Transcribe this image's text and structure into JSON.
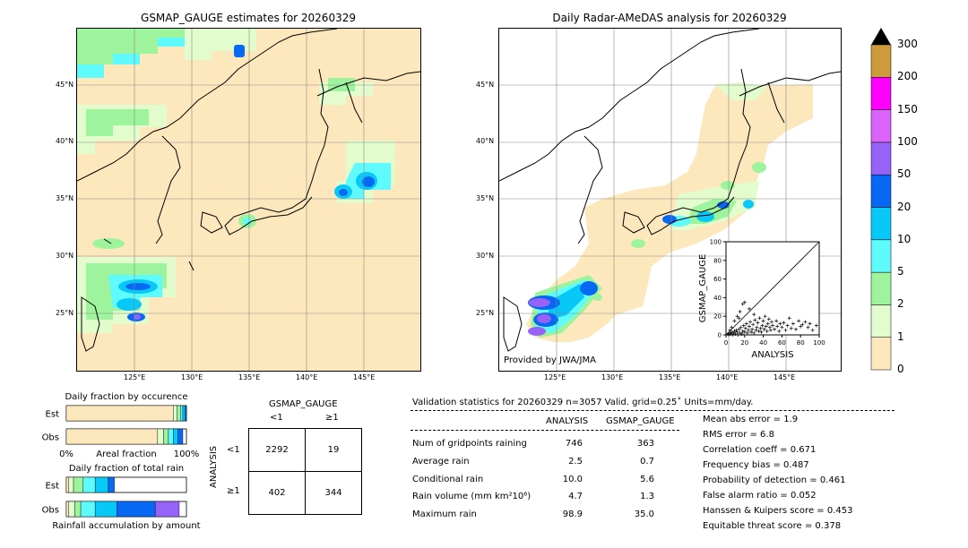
{
  "left_map": {
    "title": "GSMAP_GAUGE estimates for 20260329",
    "lat_labels": [
      "45°N",
      "40°N",
      "35°N",
      "30°N",
      "25°N"
    ],
    "lon_labels": [
      "125°E",
      "130°E",
      "135°E",
      "140°E",
      "145°E"
    ]
  },
  "right_map": {
    "title": "Daily Radar-AMeDAS analysis for 20260329",
    "lat_labels": [
      "45°N",
      "40°N",
      "35°N",
      "30°N",
      "25°N"
    ],
    "lon_labels": [
      "125°E",
      "130°E",
      "135°E",
      "140°E",
      "145°E"
    ],
    "credit": "Provided by JWA/JMA"
  },
  "colorbar": {
    "levels": [
      "0",
      "1",
      "2",
      "5",
      "10",
      "20",
      "50",
      "100",
      "150",
      "200",
      "300"
    ],
    "colors": [
      "#fde8bd",
      "#e2fccd",
      "#9ef49c",
      "#5ffafc",
      "#08c8f8",
      "#0769f3",
      "#9662f8",
      "#da64fa",
      "#ff00ff",
      "#cd9a3c"
    ]
  },
  "chart_data": [
    {
      "type": "scatter",
      "xlabel": "ANALYSIS",
      "ylabel": "GSMAP_GAUGE",
      "xlim": [
        0,
        100
      ],
      "ylim": [
        0,
        100
      ],
      "x_ticks": [
        "0",
        "20",
        "40",
        "60",
        "80",
        "100"
      ],
      "y_ticks": [
        "0",
        "20",
        "40",
        "60",
        "80",
        "100"
      ],
      "points": [
        [
          2,
          1
        ],
        [
          3,
          0
        ],
        [
          4,
          2
        ],
        [
          5,
          1
        ],
        [
          6,
          3
        ],
        [
          7,
          0
        ],
        [
          8,
          2
        ],
        [
          9,
          4
        ],
        [
          10,
          1
        ],
        [
          11,
          5
        ],
        [
          12,
          3
        ],
        [
          13,
          0
        ],
        [
          14,
          6
        ],
        [
          15,
          2
        ],
        [
          16,
          8
        ],
        [
          17,
          1
        ],
        [
          18,
          4
        ],
        [
          19,
          10
        ],
        [
          20,
          3
        ],
        [
          21,
          7
        ],
        [
          22,
          12
        ],
        [
          23,
          2
        ],
        [
          24,
          5
        ],
        [
          25,
          9
        ],
        [
          26,
          14
        ],
        [
          27,
          3
        ],
        [
          28,
          6
        ],
        [
          29,
          11
        ],
        [
          30,
          2
        ],
        [
          31,
          16
        ],
        [
          32,
          5
        ],
        [
          33,
          8
        ],
        [
          34,
          13
        ],
        [
          35,
          4
        ],
        [
          36,
          18
        ],
        [
          37,
          7
        ],
        [
          38,
          3
        ],
        [
          39,
          10
        ],
        [
          40,
          15
        ],
        [
          41,
          6
        ],
        [
          42,
          20
        ],
        [
          43,
          9
        ],
        [
          44,
          4
        ],
        [
          45,
          12
        ],
        [
          46,
          17
        ],
        [
          47,
          8
        ],
        [
          48,
          5
        ],
        [
          49,
          14
        ],
        [
          50,
          10
        ],
        [
          52,
          6
        ],
        [
          54,
          15
        ],
        [
          55,
          9
        ],
        [
          57,
          4
        ],
        [
          58,
          12
        ],
        [
          60,
          8
        ],
        [
          62,
          13
        ],
        [
          64,
          5
        ],
        [
          66,
          10
        ],
        [
          68,
          18
        ],
        [
          70,
          7
        ],
        [
          72,
          12
        ],
        [
          75,
          6
        ],
        [
          78,
          15
        ],
        [
          80,
          9
        ],
        [
          82,
          11
        ],
        [
          85,
          14
        ],
        [
          88,
          8
        ],
        [
          90,
          12
        ],
        [
          93,
          5
        ],
        [
          97,
          10
        ],
        [
          12,
          20
        ],
        [
          15,
          25
        ],
        [
          18,
          33
        ],
        [
          20,
          35
        ],
        [
          25,
          28
        ],
        [
          30,
          22
        ],
        [
          9,
          15
        ],
        [
          14,
          18
        ],
        [
          6,
          8
        ],
        [
          4,
          5
        ]
      ]
    },
    {
      "type": "bar",
      "title": "Daily fraction by occurence",
      "categories": [
        "Est",
        "Obs"
      ],
      "xlabel": "Areal fraction",
      "x_ticks": [
        "0%",
        "100%"
      ],
      "series_colors": [
        "#fde8bd",
        "#e2fccd",
        "#9ef49c",
        "#5ffafc",
        "#08c8f8",
        "#0769f3"
      ],
      "series": [
        {
          "values": [
            0.89,
            0.76
          ]
        },
        {
          "values": [
            0.03,
            0.05
          ]
        },
        {
          "values": [
            0.03,
            0.04
          ]
        },
        {
          "values": [
            0.02,
            0.04
          ]
        },
        {
          "values": [
            0.02,
            0.04
          ]
        },
        {
          "values": [
            0.01,
            0.04
          ]
        }
      ]
    },
    {
      "type": "bar",
      "title": "Daily fraction of total rain",
      "categories": [
        "Est",
        "Obs"
      ],
      "xlabel": "Rainfall accumulation by amount",
      "series_colors": [
        "#fde8bd",
        "#e2fccd",
        "#9ef49c",
        "#5ffafc",
        "#08c8f8",
        "#0769f3",
        "#9662f8"
      ],
      "series": [
        {
          "values": [
            0.02,
            0.02
          ]
        },
        {
          "values": [
            0.04,
            0.05
          ]
        },
        {
          "values": [
            0.08,
            0.05
          ]
        },
        {
          "values": [
            0.1,
            0.12
          ]
        },
        {
          "values": [
            0.11,
            0.18
          ]
        },
        {
          "values": [
            0.05,
            0.32
          ]
        },
        {
          "values": [
            0.0,
            0.2
          ]
        }
      ]
    }
  ],
  "contingency": {
    "col_header": "GSMAP_GAUGE",
    "row_header": "ANALYSIS",
    "col_labels": [
      "<1",
      "≥1"
    ],
    "row_labels": [
      "<1",
      "≥1"
    ],
    "cells": [
      [
        "2292",
        "19"
      ],
      [
        "402",
        "344"
      ]
    ]
  },
  "stats": {
    "header": "Validation statistics for 20260329  n=3057 Valid. grid=0.25˚ Units=mm/day.",
    "col_analysis": "ANALYSIS",
    "col_gsmap": "GSMAP_GAUGE",
    "rows": [
      {
        "label": "Num of gridpoints raining",
        "analysis": "746",
        "gsmap": "363"
      },
      {
        "label": "Average rain",
        "analysis": "2.5",
        "gsmap": "0.7"
      },
      {
        "label": "Conditional rain",
        "analysis": "10.0",
        "gsmap": "5.6"
      },
      {
        "label": "Rain volume (mm km²10⁶)",
        "analysis": "4.7",
        "gsmap": "1.3"
      },
      {
        "label": "Maximum rain",
        "analysis": "98.9",
        "gsmap": "35.0"
      }
    ],
    "scores": [
      "Mean abs error =    1.9",
      "RMS error =    6.8",
      "Correlation coeff =  0.671",
      "Frequency bias =  0.487",
      "Probability of detection =  0.461",
      "False alarm ratio =  0.052",
      "Hanssen & Kuipers score =  0.453",
      "Equitable threat score =  0.378"
    ]
  }
}
